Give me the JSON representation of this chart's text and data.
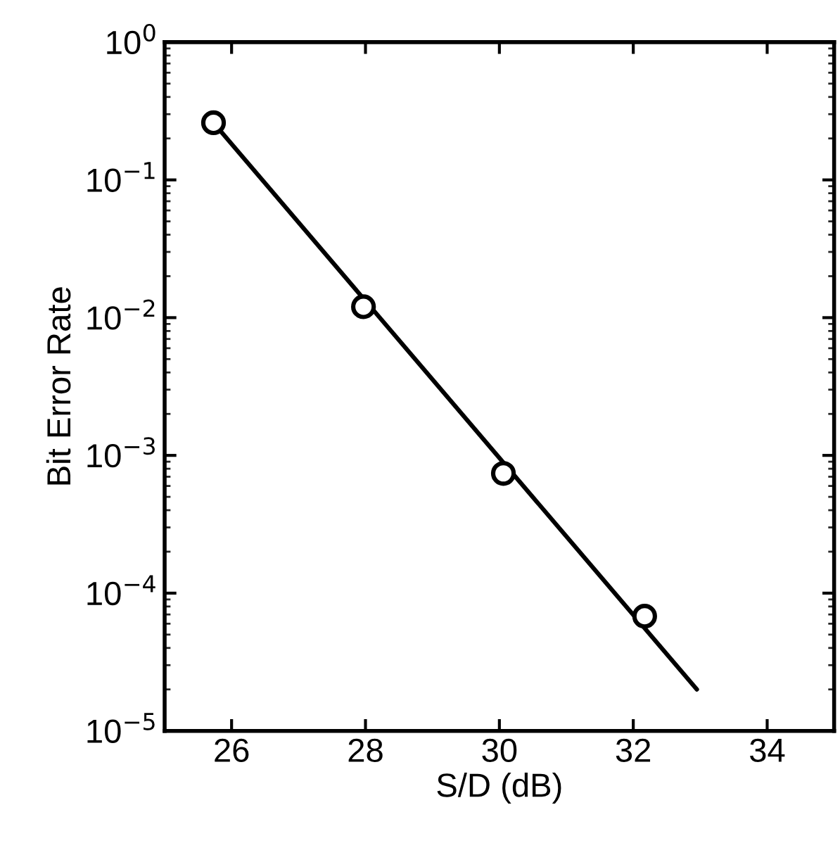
{
  "chart_data": {
    "type": "scatter",
    "xlabel": "S/D (dB)",
    "ylabel": "Bit Error Rate",
    "log": "y",
    "grid": false,
    "legend": false,
    "marker": "circle",
    "series": [
      {
        "color": "#000000",
        "x": [
          25.73,
          27.97,
          30.06,
          32.17
        ],
        "values": [
          0.26,
          0.012,
          0.00074,
          6.8e-05
        ]
      },
      {
        "type": "line",
        "color": "#000000",
        "marker": "none",
        "line_style": "solid",
        "x": [
          25.73,
          32.95
        ],
        "values": [
          0.26,
          2e-05
        ]
      }
    ],
    "xlim": [
      25,
      35
    ],
    "xticks": [
      26,
      28,
      30,
      32,
      34
    ],
    "ylim": [
      1e-05,
      1
    ],
    "yticks": [
      {
        "value": 1e-05,
        "label": "10$^{−5}$"
      },
      {
        "value": 0.0001,
        "label": "10$^{−4}$"
      },
      {
        "value": 0.001,
        "label": "10$^{−3}$"
      },
      {
        "value": 0.01,
        "label": "10$^{−2}$"
      },
      {
        "value": 0.1,
        "label": "10$^{−1}$"
      },
      {
        "value": 1,
        "label": "10$^{0}$"
      }
    ]
  }
}
